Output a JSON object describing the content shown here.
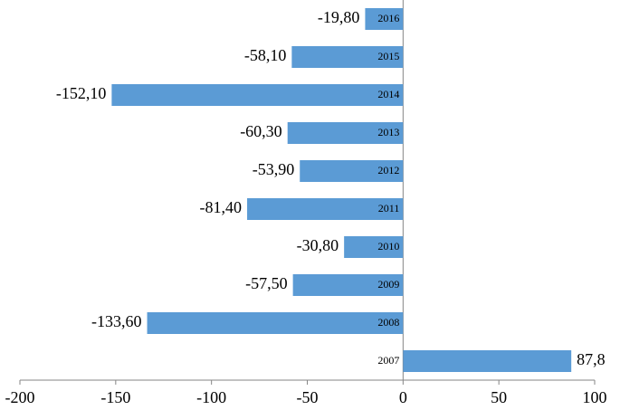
{
  "chart_data": {
    "type": "bar",
    "orientation": "horizontal",
    "categories": [
      "2016",
      "2015",
      "2014",
      "2013",
      "2012",
      "2011",
      "2010",
      "2009",
      "2008",
      "2007"
    ],
    "values": [
      -19.8,
      -58.1,
      -152.1,
      -60.3,
      -53.9,
      -81.4,
      -30.8,
      -57.5,
      -133.6,
      87.8
    ],
    "value_labels": [
      "-19,80",
      "-58,10",
      "-152,10",
      "-60,30",
      "-53,90",
      "-81,40",
      "-30,80",
      "-57,50",
      "-133,60",
      "87,8"
    ],
    "color": "#5b9bd5",
    "xlim": [
      -200,
      100
    ],
    "xticks": [
      -200,
      -150,
      -100,
      -50,
      0,
      50,
      100
    ]
  }
}
